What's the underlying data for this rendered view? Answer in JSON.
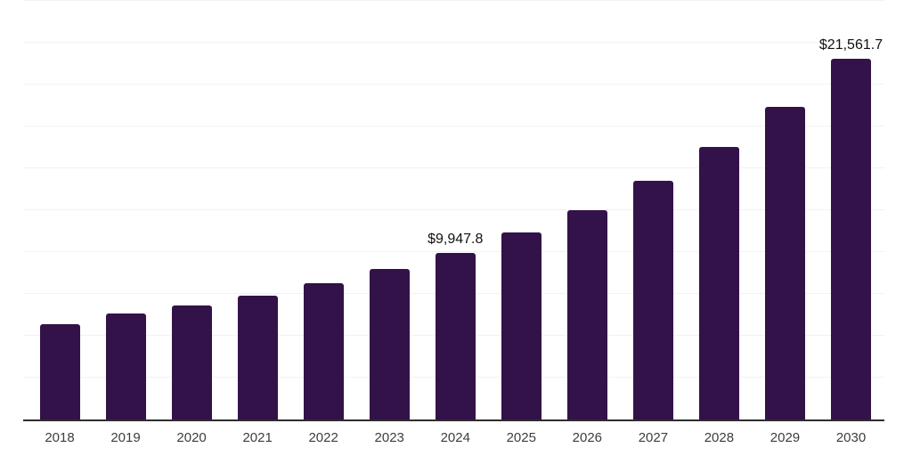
{
  "chart": {
    "background": "#ffffff",
    "bar_color": "#33124a",
    "gridline_color": "#f2f2f2",
    "axis_line_color": "#2e2e2e",
    "value_label_color": "#111111",
    "tick_label_color": "#3d3d3d"
  },
  "chart_data": {
    "type": "bar",
    "title": "",
    "xlabel": "",
    "ylabel": "",
    "categories": [
      "2018",
      "2019",
      "2020",
      "2021",
      "2022",
      "2023",
      "2024",
      "2025",
      "2026",
      "2027",
      "2028",
      "2029",
      "2030"
    ],
    "values": [
      5690,
      6330,
      6790,
      7390,
      8120,
      9000,
      9947.8,
      11170,
      12510,
      14240,
      16260,
      18670,
      21561.7
    ],
    "value_labels": [
      "",
      "",
      "",
      "",
      "",
      "",
      "$9,947.8",
      "",
      "",
      "",
      "",
      "",
      "$21,561.7"
    ],
    "ylim": [
      0,
      25000
    ],
    "gridline_interval": 2500,
    "grid": true,
    "legend_position": "none"
  }
}
